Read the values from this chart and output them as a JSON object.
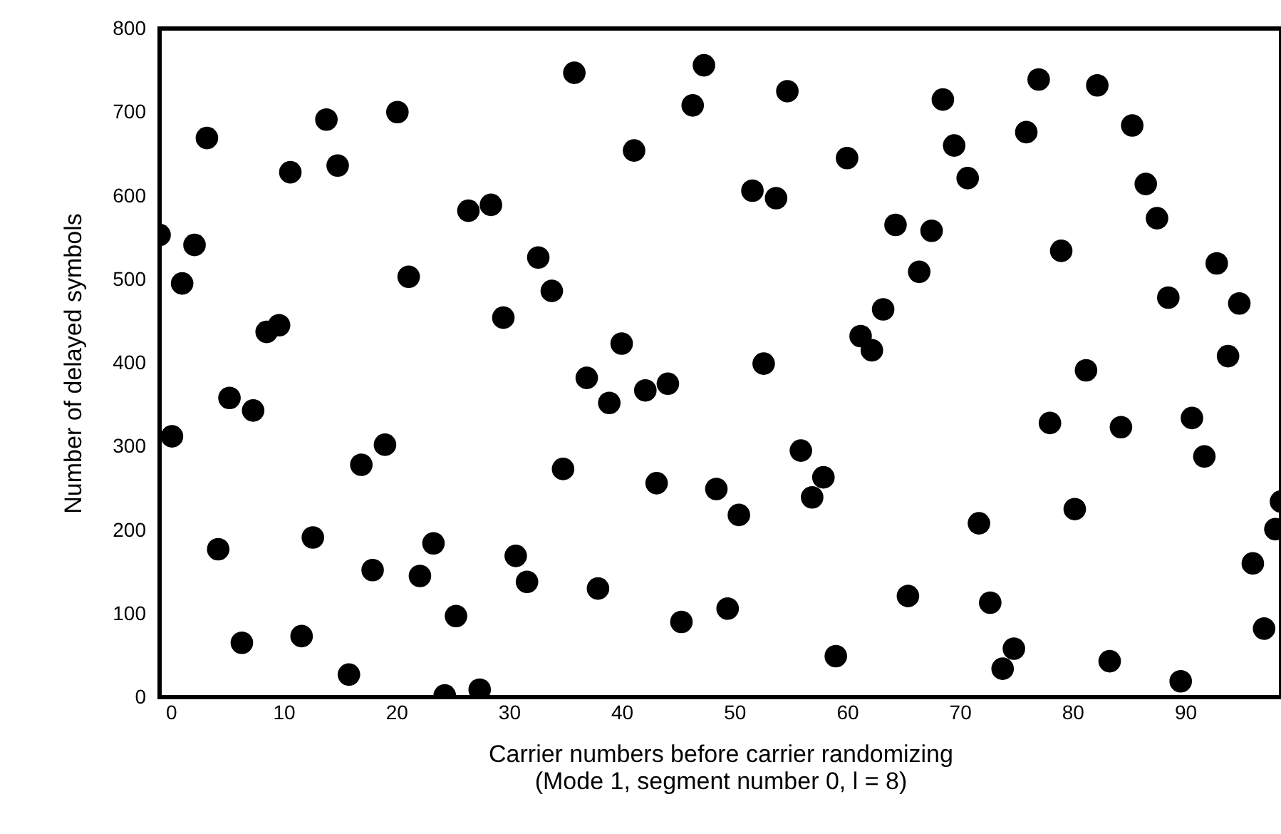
{
  "chart_data": {
    "type": "scatter",
    "xlabel": "Carrier numbers before carrier randomizing\n(Mode 1, segment number 0, l = 8)",
    "ylabel": "Number of delayed symbols",
    "x": [
      -1.0,
      0.1,
      1.0,
      2.1,
      3.2,
      4.2,
      5.2,
      6.3,
      7.3,
      8.5,
      9.6,
      10.6,
      11.6,
      12.6,
      13.8,
      14.8,
      15.8,
      16.9,
      17.9,
      19.0,
      20.1,
      21.1,
      22.1,
      23.3,
      24.3,
      25.3,
      26.4,
      27.4,
      28.4,
      29.5,
      30.6,
      31.6,
      32.6,
      33.8,
      34.8,
      35.8,
      36.9,
      37.9,
      38.9,
      40.0,
      41.1,
      42.1,
      43.1,
      44.1,
      45.3,
      46.3,
      47.3,
      48.4,
      49.4,
      50.4,
      51.6,
      52.6,
      53.7,
      54.7,
      55.9,
      56.9,
      57.9,
      59.0,
      60.0,
      61.2,
      62.2,
      63.2,
      64.3,
      65.4,
      66.4,
      67.5,
      68.5,
      69.5,
      70.7,
      71.7,
      72.7,
      73.8,
      74.8,
      75.9,
      77.0,
      78.0,
      79.0,
      80.2,
      81.2,
      82.2,
      83.3,
      84.3,
      85.3,
      86.5,
      87.5,
      88.5,
      89.6,
      90.6,
      91.7,
      92.8,
      93.8,
      94.8,
      96.0,
      97.0,
      98.0,
      98.5
    ],
    "values": [
      553,
      312,
      495,
      541,
      669,
      177,
      358,
      65,
      343,
      437,
      445,
      628,
      73,
      191,
      691,
      636,
      27,
      278,
      152,
      302,
      700,
      503,
      145,
      184,
      2,
      97,
      582,
      9,
      589,
      454,
      169,
      138,
      526,
      486,
      273,
      747,
      382,
      130,
      352,
      423,
      654,
      367,
      256,
      375,
      90,
      708,
      756,
      249,
      106,
      218,
      606,
      399,
      597,
      725,
      295,
      239,
      263,
      49,
      645,
      432,
      415,
      464,
      565,
      121,
      509,
      558,
      715,
      660,
      621,
      208,
      113,
      34,
      58,
      676,
      739,
      328,
      534,
      225,
      391,
      732,
      43,
      323,
      684,
      614,
      573,
      478,
      19,
      334,
      288,
      519,
      408,
      471,
      160,
      82,
      201,
      234
    ],
    "color": "#000000",
    "marker": "circle",
    "xlim": [
      -1,
      98.5
    ],
    "ylim": [
      0,
      800
    ],
    "xticks": [
      0,
      10,
      20,
      30,
      40,
      50,
      60,
      70,
      80,
      90
    ],
    "yticks": [
      0,
      100,
      200,
      300,
      400,
      500,
      600,
      700,
      800
    ],
    "grid": false
  }
}
